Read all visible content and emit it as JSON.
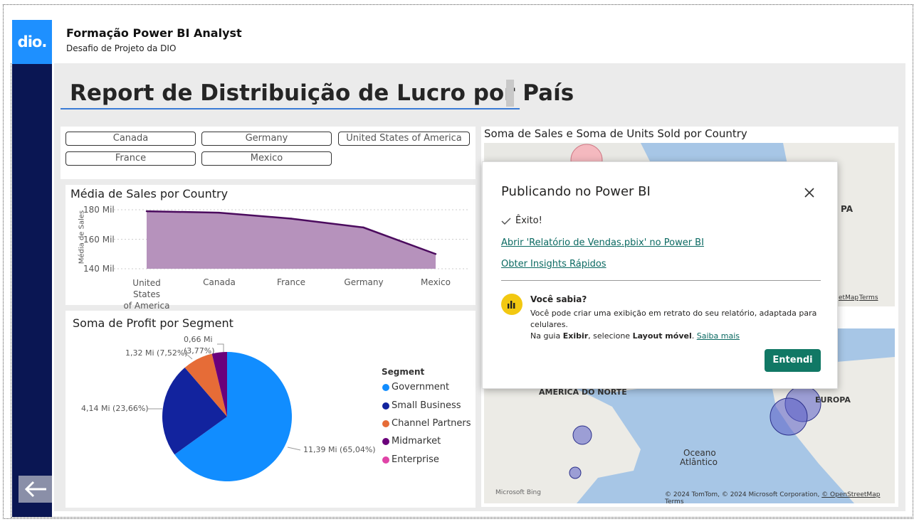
{
  "app": {
    "logo_text": "dio.",
    "title": "Formação Power BI Analyst",
    "subtitle": "Desafio de Projeto da DIO"
  },
  "report": {
    "title": "Report de Distribuição de Lucro por País"
  },
  "slicer": {
    "items": [
      "Canada",
      "Germany",
      "United States of America",
      "France",
      "Mexico"
    ]
  },
  "avg_sales_chart": {
    "title": "Média de Sales por Country",
    "ylabel": "Média de Sales",
    "yticks": [
      "180 Mil",
      "160 Mil",
      "140 Mil"
    ],
    "categories": [
      "United States of America",
      "Canada",
      "France",
      "Germany",
      "Mexico"
    ],
    "category_lines": [
      [
        "United States",
        "of America"
      ],
      [
        "Canada"
      ],
      [
        "France"
      ],
      [
        "Germany"
      ],
      [
        "Mexico"
      ]
    ],
    "values_mil": [
      179,
      178,
      174,
      168,
      150
    ],
    "ylim_mil": [
      140,
      180
    ],
    "fill_color": "#b692bc",
    "line_color": "#4b0b5e"
  },
  "profit_pie": {
    "title": "Soma de Profit por Segment",
    "legend_title": "Segment",
    "segments": [
      {
        "name": "Government",
        "value": 11.39,
        "label": "11,39 Mi (65,04%)",
        "color": "#118dff"
      },
      {
        "name": "Small Business",
        "value": 4.14,
        "label": "4,14 Mi (23,66%)",
        "color": "#12239e"
      },
      {
        "name": "Channel Partners",
        "value": 1.32,
        "label": "1,32 Mi (7,52%)",
        "color": "#e66c37"
      },
      {
        "name": "Midmarket",
        "value": 0.66,
        "label_line1": "0,66 Mi",
        "label_line2": "(3,77%)",
        "color": "#6b007b"
      },
      {
        "name": "Enterprise",
        "value": 0,
        "color": "#e044a7"
      }
    ]
  },
  "map_visual": {
    "title": "Soma de Sales e Soma de Units Sold por Country",
    "labels": {
      "europa_top": "PA",
      "north_america": "AMÉRICA DO NORTE",
      "europa": "EUROPA",
      "ocean_line1": "Oceano",
      "ocean_line2": "Atlântico"
    },
    "attribution": "© 2024 TomTom, © 2024 Microsoft Corporation,",
    "osm_link": "© OpenStreetMap",
    "terms": "Terms",
    "map_top_credit": "etMap",
    "bing": "Microsoft Bing"
  },
  "dialog": {
    "title": "Publicando no Power BI",
    "success": "Êxito!",
    "open_link": "Abrir 'Relatório de Vendas.pbix' no Power BI",
    "insights_link": "Obter Insights Rápidos",
    "tip_title": "Você sabia?",
    "tip_line1": "Você pode criar uma exibição em retrato do seu relatório, adaptada para",
    "tip_line2": "celulares.",
    "tip_line3_prefix": "Na guia ",
    "tip_line3_exibir": "Exibir",
    "tip_line3_mid": ", selecione ",
    "tip_line3_layout": "Layout móvel",
    "tip_line3_dot": ".",
    "learn_more": "Saiba mais",
    "button": "Entendi",
    "accent": "#117865"
  }
}
